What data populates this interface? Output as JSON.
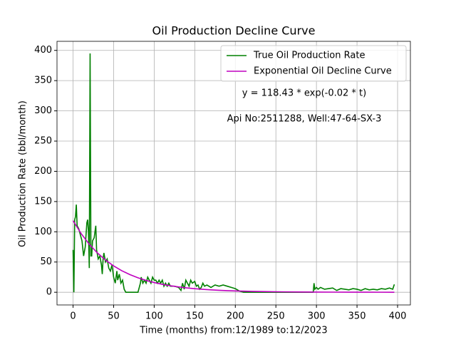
{
  "chart_data": {
    "type": "line",
    "title": "Oil Production Decline Curve",
    "xlabel": "Time (months) from:12/1989 to:12/2023",
    "ylabel": "Oil Production Rate (bbl/month)",
    "annotations": [
      "y = 118.43 * exp(-0.02 * t)",
      "Api No:2511288, Well:47-64-SX-3"
    ],
    "xlim": [
      -19.8,
      415.8
    ],
    "ylim": [
      -21,
      415
    ],
    "xticks": [
      0,
      50,
      100,
      150,
      200,
      250,
      300,
      350,
      400
    ],
    "yticks": [
      0,
      50,
      100,
      150,
      200,
      250,
      300,
      350,
      400
    ],
    "grid": true,
    "legend": "upper right",
    "series": [
      {
        "name": "True Oil Production Rate",
        "color": "#008000",
        "x": [
          0,
          1,
          2,
          3,
          4,
          5,
          7,
          9,
          11,
          13,
          15,
          17,
          18,
          19,
          20,
          21,
          22,
          23,
          24,
          26,
          27,
          28,
          29,
          31,
          33,
          35,
          36,
          37,
          38,
          40,
          42,
          44,
          46,
          48,
          50,
          52,
          54,
          55,
          57,
          59,
          61,
          63,
          65,
          70,
          75,
          80,
          83,
          84,
          86,
          88,
          90,
          92,
          94,
          96,
          98,
          100,
          102,
          104,
          106,
          108,
          110,
          112,
          114,
          116,
          118,
          120,
          125,
          130,
          133,
          135,
          137,
          139,
          141,
          143,
          145,
          147,
          150,
          152,
          154,
          156,
          158,
          160,
          162,
          165,
          170,
          175,
          180,
          185,
          190,
          195,
          200,
          205,
          210,
          220,
          230,
          240,
          250,
          260,
          270,
          280,
          290,
          296,
          297,
          298,
          300,
          302,
          305,
          310,
          315,
          320,
          325,
          330,
          335,
          340,
          345,
          350,
          355,
          360,
          365,
          370,
          375,
          380,
          385,
          390,
          394,
          396
        ],
        "values": [
          70,
          0,
          120,
          125,
          145,
          110,
          105,
          95,
          85,
          60,
          75,
          115,
          120,
          100,
          40,
          395,
          60,
          60,
          85,
          90,
          100,
          110,
          70,
          55,
          60,
          45,
          30,
          55,
          65,
          50,
          55,
          40,
          35,
          45,
          25,
          15,
          35,
          20,
          30,
          15,
          20,
          5,
          0,
          0,
          0,
          0,
          15,
          25,
          15,
          20,
          15,
          25,
          20,
          15,
          25,
          20,
          20,
          15,
          20,
          15,
          20,
          10,
          15,
          10,
          15,
          10,
          10,
          8,
          3,
          15,
          5,
          20,
          15,
          10,
          20,
          15,
          18,
          10,
          12,
          5,
          8,
          15,
          10,
          12,
          8,
          12,
          10,
          12,
          10,
          8,
          6,
          2,
          0,
          0,
          0,
          0,
          0,
          0,
          0,
          0,
          0,
          0,
          15,
          5,
          8,
          5,
          8,
          5,
          6,
          7,
          3,
          6,
          5,
          4,
          6,
          5,
          3,
          6,
          4,
          5,
          4,
          6,
          5,
          7,
          5,
          13
        ]
      },
      {
        "name": "Exponential Oil Decline Curve",
        "color": "#bf00bf",
        "x": [
          0,
          10,
          20,
          30,
          40,
          50,
          60,
          70,
          80,
          90,
          100,
          110,
          120,
          130,
          140,
          150,
          160,
          170,
          180,
          190,
          200,
          220,
          240,
          260,
          280,
          300,
          320,
          340,
          360,
          380,
          396
        ],
        "values": [
          118.43,
          96.96,
          79.39,
          64.99,
          53.22,
          43.57,
          35.67,
          29.21,
          23.91,
          19.58,
          16.03,
          13.12,
          10.74,
          8.8,
          7.2,
          5.9,
          4.83,
          3.95,
          3.24,
          2.65,
          2.17,
          1.45,
          0.97,
          0.65,
          0.44,
          0.29,
          0.2,
          0.13,
          0.09,
          0.06,
          0.04
        ]
      }
    ]
  }
}
